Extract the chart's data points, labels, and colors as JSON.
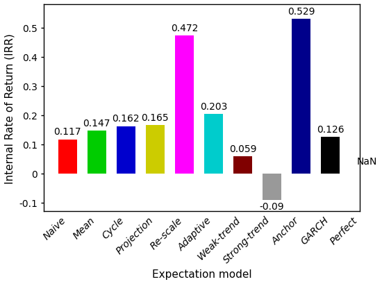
{
  "categories": [
    "Naive",
    "Mean",
    "Cycle",
    "Projection",
    "Re-scale",
    "Adaptive",
    "Weak-trend",
    "Strong-trend",
    "Anchor",
    "GARCH",
    "Perfect"
  ],
  "values": [
    0.117,
    0.147,
    0.162,
    0.165,
    0.472,
    0.203,
    0.059,
    -0.09,
    0.529,
    0.126,
    null
  ],
  "labels": [
    "0.117",
    "0.147",
    "0.162",
    "0.165",
    "0.472",
    "0.203",
    "0.059",
    "-0.09",
    "0.529",
    "0.126",
    "NaN"
  ],
  "nan_label_index": 10,
  "colors": [
    "#ff0000",
    "#00cc00",
    "#0000cd",
    "#cccc00",
    "#ff00ff",
    "#00cccc",
    "#800000",
    "#999999",
    "#00008b",
    "#000000",
    "#111111"
  ],
  "xlabel": "Expectation model",
  "ylabel": "Internal Rate of Return (IRR)",
  "ylim": [
    -0.13,
    0.58
  ],
  "yticks": [
    -0.1,
    0.0,
    0.1,
    0.2,
    0.3,
    0.4,
    0.5
  ],
  "label_fontsize": 11,
  "tick_fontsize": 10,
  "figsize": [
    5.5,
    4.1
  ],
  "dpi": 100
}
